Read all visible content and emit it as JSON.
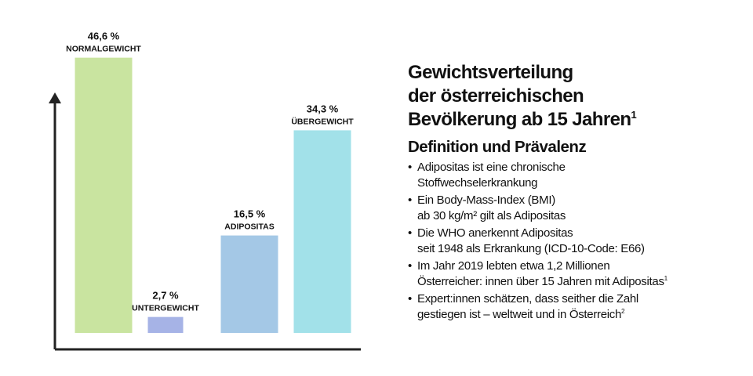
{
  "chart_data": {
    "type": "bar",
    "categories": [
      "NORMALGEWICHT",
      "UNTERGEWICHT",
      "ADIPOSITAS",
      "ÜBERGEWICHT"
    ],
    "values": [
      46.6,
      2.7,
      16.5,
      34.3
    ],
    "value_labels": [
      "46,6 %",
      "2,7 %",
      "16,5 %",
      "34,3 %"
    ],
    "colors": [
      "#c9e4a0",
      "#a6b3e6",
      "#a4c8e6",
      "#a2e1e9"
    ],
    "ylim": [
      0,
      50
    ]
  },
  "panel": {
    "title_lines": [
      "Gewichtsverteilung",
      "der österreichischen",
      "Bevölkerung ab 15 Jahren"
    ],
    "title_note": "1",
    "subtitle": "Definition und Prävalenz",
    "bullets": [
      {
        "lines": [
          "Adipositas ist eine chronische",
          "Stoffwechselerkrankung"
        ]
      },
      {
        "lines": [
          "Ein Body-Mass-Index (BMI)",
          "ab 30 kg/m² gilt als Adipositas"
        ]
      },
      {
        "lines": [
          "Die WHO anerkennt Adipositas",
          "seit 1948 als Erkrankung (ICD-10-Code: E66)"
        ]
      },
      {
        "lines": [
          "Im Jahr 2019 lebten etwa 1,2 Millionen",
          "Österreicher: innen über 15 Jahren mit Adipositas"
        ],
        "note": "1"
      },
      {
        "lines": [
          "Expert:innen schätzen, dass seither die Zahl",
          "gestiegen ist – weltweit und in Österreich"
        ],
        "note": "2"
      }
    ]
  }
}
